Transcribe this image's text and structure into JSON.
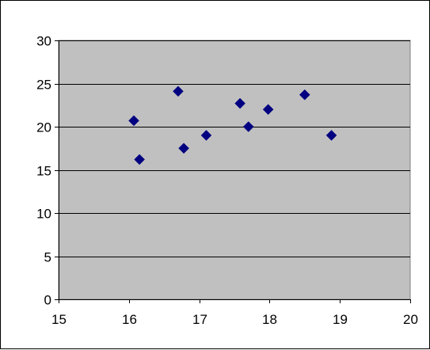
{
  "chart_data": {
    "type": "scatter",
    "title": "",
    "xlabel": "",
    "ylabel": "",
    "xlim": [
      15,
      20
    ],
    "ylim": [
      0,
      30
    ],
    "x_ticks": [
      15,
      16,
      17,
      18,
      19,
      20
    ],
    "y_ticks": [
      0,
      5,
      10,
      15,
      20,
      25,
      30
    ],
    "grid": "horizontal",
    "legend": "none",
    "series": [
      {
        "x": [
          16.07,
          16.15,
          16.7,
          16.78,
          17.1,
          17.58,
          17.7,
          17.98,
          18.5,
          18.88
        ],
        "y": [
          20.7,
          16.2,
          24.1,
          17.5,
          19.0,
          22.7,
          20.0,
          22.0,
          23.7,
          19.0
        ]
      }
    ],
    "colors": {
      "plot_background": "#c0c0c0",
      "marker": "#000080",
      "gridline": "#000000"
    }
  }
}
